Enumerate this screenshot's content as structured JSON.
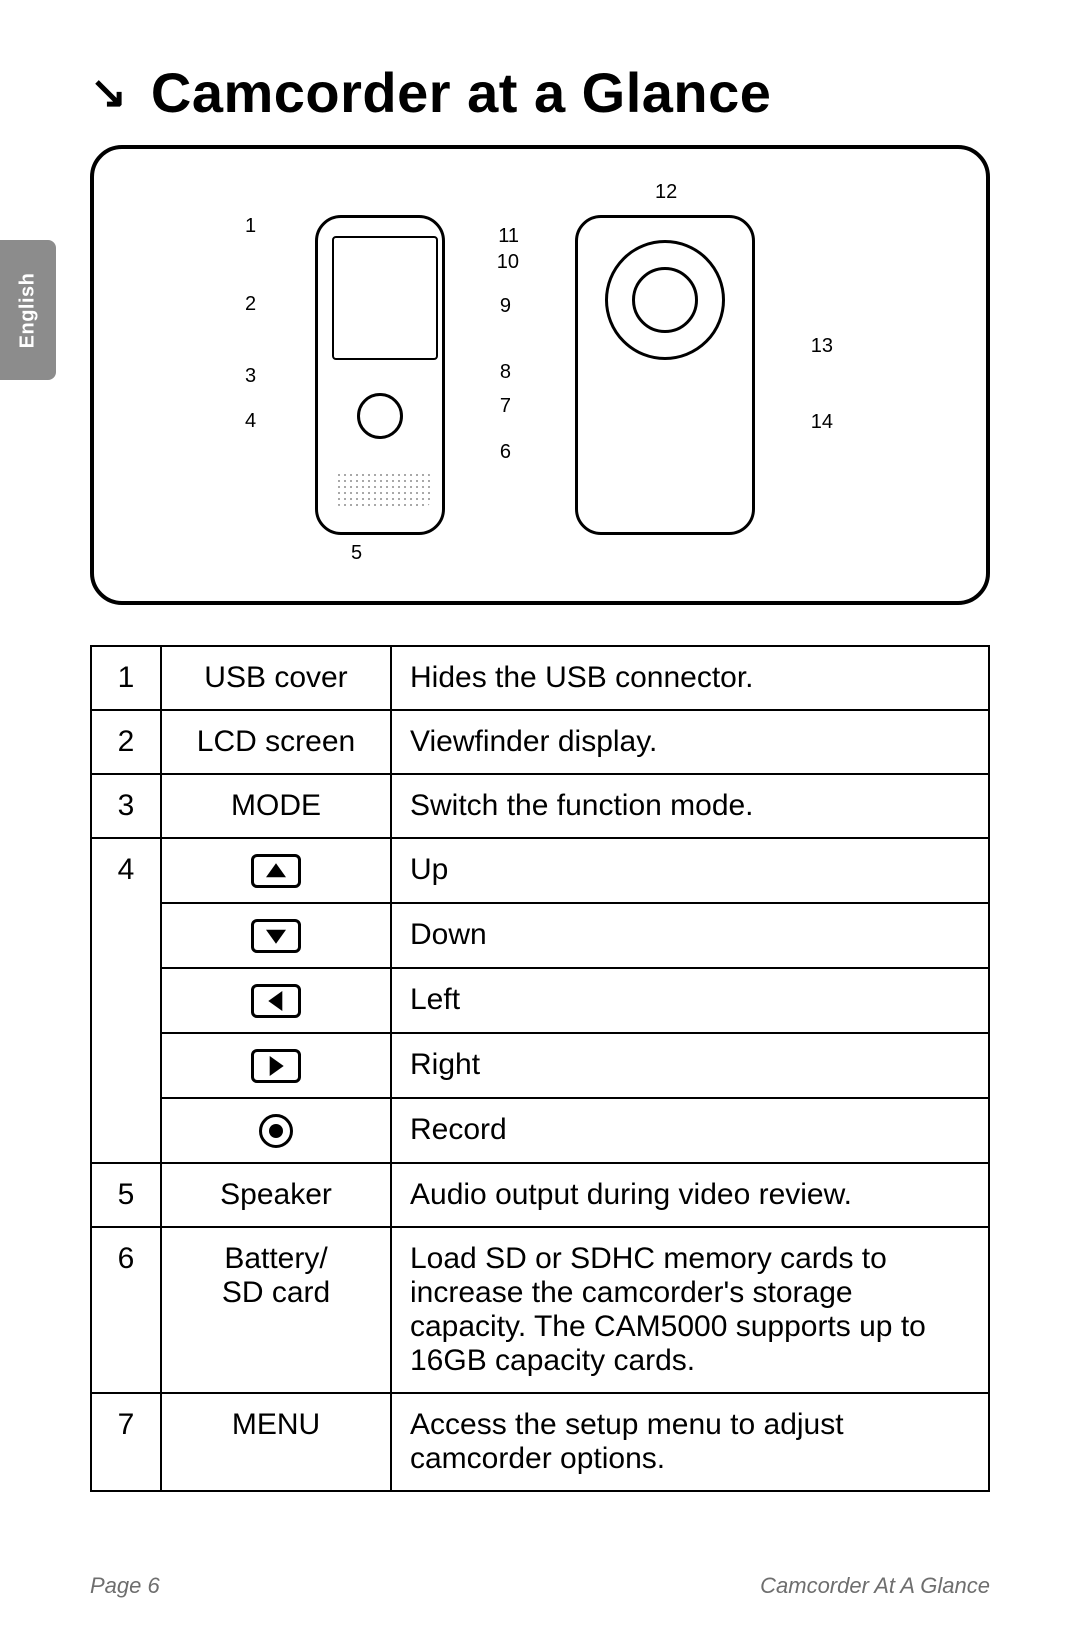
{
  "title": "Camcorder at a Glance",
  "language_tab": "English",
  "diagram": {
    "callouts_left": [
      "1",
      "2",
      "3",
      "4",
      "5"
    ],
    "callouts_right_front": [
      "11",
      "10",
      "9",
      "8",
      "7",
      "6"
    ],
    "callouts_top": "12",
    "callouts_right_back": [
      "13",
      "14"
    ]
  },
  "rows": [
    {
      "num": "1",
      "label": "USB cover",
      "desc": "Hides the USB connector."
    },
    {
      "num": "2",
      "label": "LCD screen",
      "desc": "Viewfinder display."
    },
    {
      "num": "3",
      "label": "MODE",
      "desc": "Switch the function mode."
    },
    {
      "num": "4",
      "icon": "up",
      "desc": "Up"
    },
    {
      "num": "",
      "icon": "down",
      "desc": "Down"
    },
    {
      "num": "",
      "icon": "left",
      "desc": "Left"
    },
    {
      "num": "",
      "icon": "right",
      "desc": "Right"
    },
    {
      "num": "",
      "icon": "record",
      "desc": "Record"
    },
    {
      "num": "5",
      "label": "Speaker",
      "desc": "Audio output during video review."
    },
    {
      "num": "6",
      "label": "Battery/\nSD card",
      "desc": "Load SD or SDHC memory cards to increase the camcorder's storage capacity. The CAM5000 supports up to 16GB capacity cards."
    },
    {
      "num": "7",
      "label": "MENU",
      "desc": "Access the setup menu to adjust camcorder options."
    }
  ],
  "footer": {
    "left": "Page 6",
    "right": "Camcorder At A Glance"
  },
  "colors": {
    "text": "#000000",
    "tab_bg": "#8c8c8c",
    "tab_text": "#ffffff",
    "footer_text": "#6e6e6e"
  }
}
